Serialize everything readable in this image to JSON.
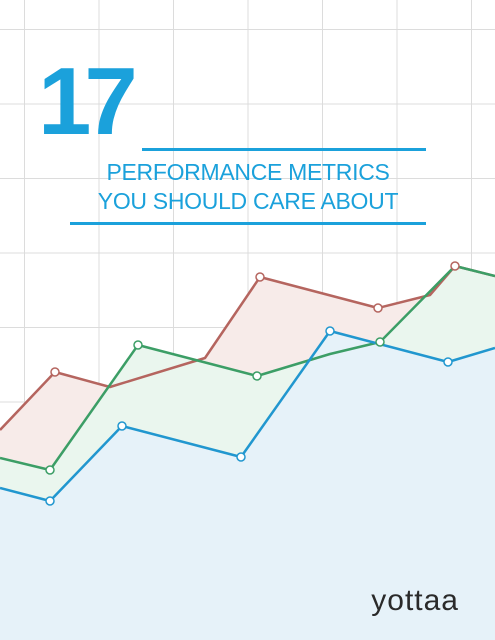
{
  "cover": {
    "number": "17",
    "title_line1": "PERFORMANCE METRICS",
    "title_line2": "YOU SHOULD CARE ABOUT",
    "logo_text": "yottaa",
    "accent_color": "#1ba1db"
  },
  "chart_data": {
    "type": "area",
    "series": [
      {
        "color": "#b5655f",
        "fill": "#f7ebe9",
        "points": [
          [
            0,
            430
          ],
          [
            55,
            372
          ],
          [
            110,
            387
          ],
          [
            205,
            358
          ],
          [
            260,
            277
          ],
          [
            378,
            308
          ],
          [
            430,
            295
          ],
          [
            455,
            266
          ],
          [
            495,
            276
          ]
        ]
      },
      {
        "color": "#3c9e66",
        "fill": "#eaf6ee",
        "points": [
          [
            0,
            458
          ],
          [
            50,
            470
          ],
          [
            138,
            345
          ],
          [
            257,
            376
          ],
          [
            330,
            354
          ],
          [
            380,
            342
          ],
          [
            455,
            266
          ],
          [
            495,
            276
          ]
        ]
      },
      {
        "color": "#2197cf",
        "fill": "#e6f2f9",
        "points": [
          [
            0,
            488
          ],
          [
            50,
            501
          ],
          [
            122,
            426
          ],
          [
            241,
            457
          ],
          [
            330,
            331
          ],
          [
            448,
            362
          ],
          [
            495,
            348
          ]
        ]
      }
    ]
  }
}
